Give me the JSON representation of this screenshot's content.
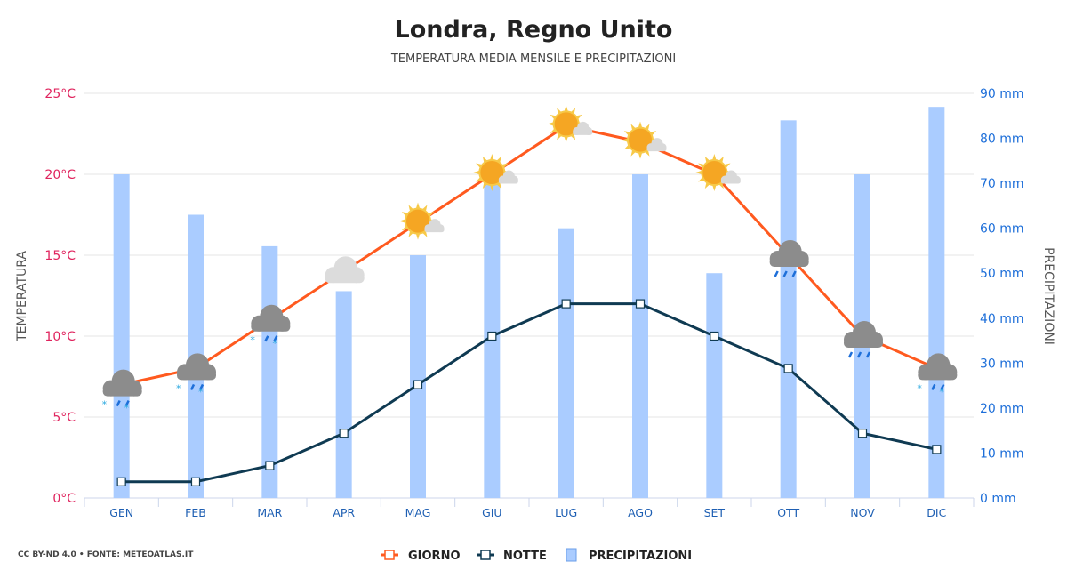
{
  "chart_data": {
    "type": "bar+line",
    "title": "Londra, Regno Unito",
    "subtitle": "TEMPERATURA MEDIA MENSILE E PRECIPITAZIONI",
    "categories": [
      "GEN",
      "FEB",
      "MAR",
      "APR",
      "MAG",
      "GIU",
      "LUG",
      "AGO",
      "SET",
      "OTT",
      "NOV",
      "DIC"
    ],
    "ylabel_left": "TEMPERATURA",
    "ylabel_right": "PRECIPITAZIONI",
    "ylim_left": [
      0,
      25
    ],
    "ylim_right": [
      0,
      90
    ],
    "yticks_left": [
      "0°C",
      "5°C",
      "10°C",
      "15°C",
      "20°C",
      "25°C"
    ],
    "yticks_right": [
      "0 mm",
      "10 mm",
      "20 mm",
      "30 mm",
      "40 mm",
      "50 mm",
      "60 mm",
      "70 mm",
      "80 mm",
      "90 mm"
    ],
    "grid": true,
    "legend_position": "bottom",
    "series": [
      {
        "name": "GIORNO",
        "type": "line",
        "axis": "left",
        "color": "#ff5a1f",
        "values": [
          7,
          8,
          11,
          14,
          17,
          20,
          23,
          22,
          20,
          15,
          10,
          8
        ]
      },
      {
        "name": "NOTTE",
        "type": "line",
        "axis": "left",
        "color": "#0f3a52",
        "values": [
          1,
          1,
          2,
          4,
          7,
          10,
          12,
          12,
          10,
          8,
          4,
          3
        ]
      },
      {
        "name": "PRECIPITAZIONI",
        "type": "bar",
        "axis": "right",
        "color": "#aaccff",
        "values": [
          72,
          63,
          56,
          46,
          54,
          75,
          60,
          72,
          50,
          84,
          72,
          87
        ]
      }
    ],
    "weather_icons": [
      "cloud-rain-snow",
      "cloud-rain-snow",
      "cloud-rain-snow",
      "cloud",
      "sun-cloud",
      "sun-cloud",
      "sun-cloud",
      "sun-cloud",
      "sun-cloud",
      "cloud-rain",
      "cloud-rain",
      "cloud-rain-snow"
    ],
    "source": "CC BY-ND 4.0 • FONTE: METEOATLAS.IT"
  }
}
